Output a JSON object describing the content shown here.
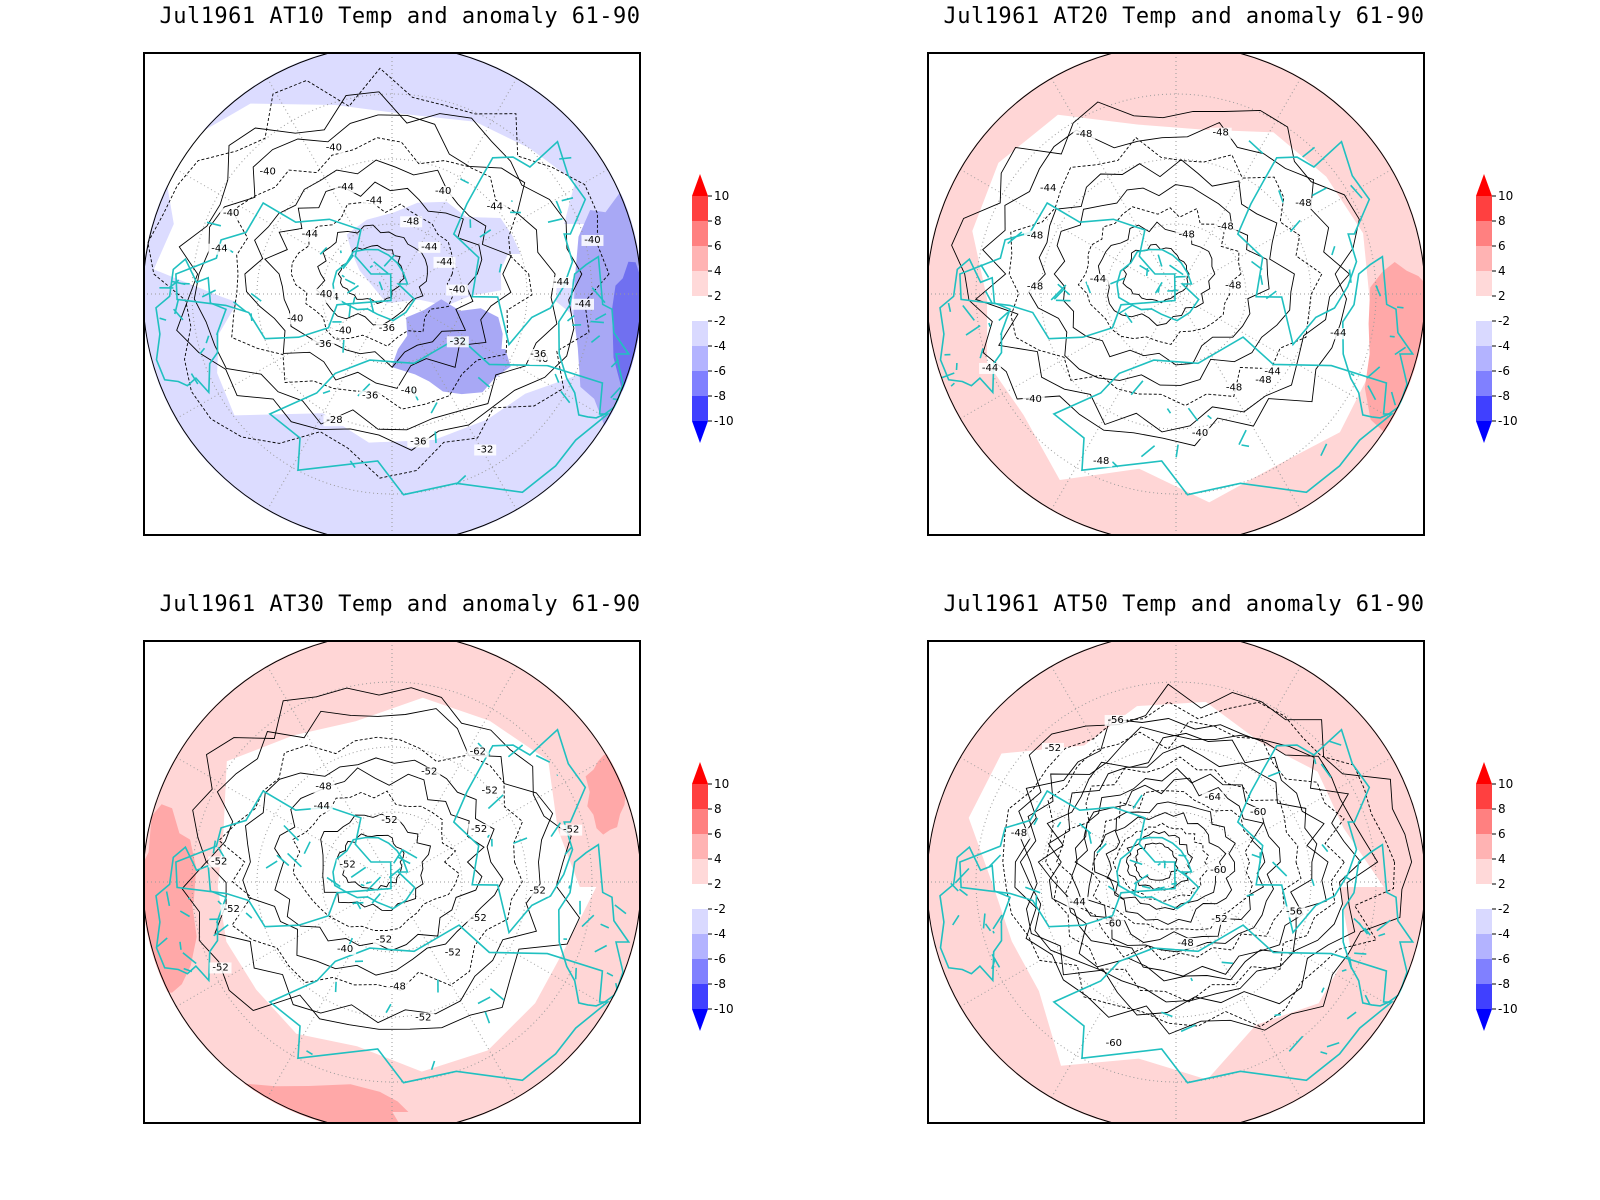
{
  "panels": [
    {
      "title": "Jul1961 AT10 Temp and anomaly 61-90",
      "anomaly": "cold",
      "contour_labels": [
        "-44",
        "-40",
        "-36",
        "-32",
        "-32",
        "-36",
        "-40",
        "-36",
        "-36",
        "-28",
        "-36",
        "-40",
        "-40",
        "-44",
        "-40",
        "-44",
        "-40",
        "-40",
        "-44",
        "-40",
        "-44",
        "-44",
        "-48",
        "-40",
        "-44",
        "-44",
        "-44",
        "-40",
        "-40",
        "-44"
      ]
    },
    {
      "title": "Jul1961 AT20 Temp and anomaly 61-90",
      "anomaly": "warm",
      "contour_labels": [
        "-44",
        "-44",
        "-48",
        "-48",
        "-40",
        "-48",
        "-40",
        "-44",
        "-48",
        "-44",
        "-48",
        "-44",
        "-48",
        "-48",
        "-48",
        "-48",
        "-48",
        "-48"
      ]
    },
    {
      "title": "Jul1961 AT30 Temp and anomaly 61-90",
      "anomaly": "warm",
      "contour_labels": [
        "-52",
        "-52",
        "-52",
        "-52",
        "-48",
        "-52",
        "-40",
        "-52",
        "-52",
        "-52",
        "-52",
        "-44",
        "-48",
        "-52",
        "-52",
        "-62",
        "-52",
        "-52",
        "-52"
      ]
    },
    {
      "title": "Jul1961 AT50 Temp and anomaly 61-90",
      "anomaly": "warm",
      "contour_labels": [
        "-56",
        "-52",
        "-48",
        "-60",
        "-60",
        "-44",
        "-48",
        "-52",
        "-56",
        "-64",
        "-60",
        "-60"
      ]
    }
  ],
  "colorbar": {
    "labels": [
      "10",
      "8",
      "6",
      "4",
      "2",
      "-2",
      "-4",
      "-6",
      "-8",
      "-10"
    ],
    "colors": [
      "#ff0000",
      "#ff4040",
      "#ff8080",
      "#ffb3b3",
      "#ffd9d9",
      "#ffffff",
      "#d9d9ff",
      "#b3b3ff",
      "#8080ff",
      "#4040ff",
      "#0000ff"
    ]
  },
  "colors": {
    "coastline": "#20c0c0",
    "contour": "#000000",
    "warm_light": "#ffd6d6",
    "warm_mid": "#ffa8a8",
    "cold_light": "#dcdcff",
    "cold_mid": "#a8a8f5",
    "cold_dark": "#7070f0"
  }
}
